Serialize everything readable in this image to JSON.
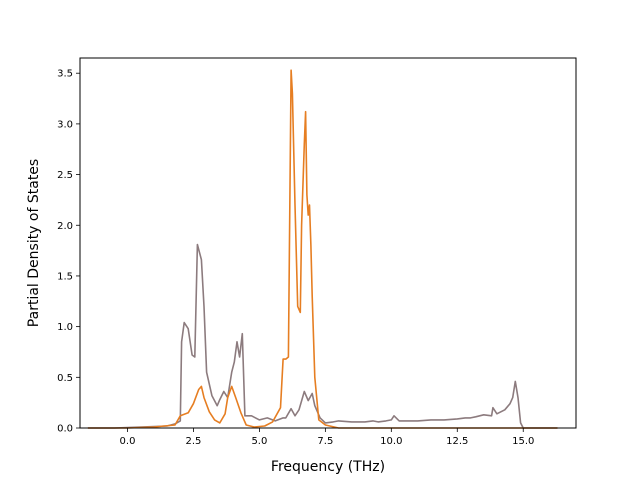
{
  "chart_data": {
    "type": "line",
    "title": "",
    "xlabel": "Frequency (THz)",
    "ylabel": "Partial Density of States",
    "xlim": [
      -1.8,
      17.0
    ],
    "ylim": [
      0,
      3.65
    ],
    "xticks": [
      0.0,
      2.5,
      5.0,
      7.5,
      10.0,
      12.5,
      15.0
    ],
    "xtick_labels": [
      "0.0",
      "2.5",
      "5.0",
      "7.5",
      "10.0",
      "12.5",
      "15.0"
    ],
    "yticks": [
      0.0,
      0.5,
      1.0,
      1.5,
      2.0,
      2.5,
      3.0,
      3.5
    ],
    "ytick_labels": [
      "0.0",
      "0.5",
      "1.0",
      "1.5",
      "2.0",
      "2.5",
      "3.0",
      "3.5"
    ],
    "grid": false,
    "legend": "none",
    "series": [
      {
        "color": "#8c7b7e",
        "x": [
          -1.5,
          -0.5,
          0.0,
          0.5,
          1.0,
          1.5,
          1.8,
          2.0,
          2.05,
          2.15,
          2.3,
          2.45,
          2.55,
          2.65,
          2.8,
          2.9,
          3.0,
          3.2,
          3.4,
          3.5,
          3.65,
          3.8,
          3.95,
          4.05,
          4.15,
          4.25,
          4.35,
          4.45,
          4.55,
          4.7,
          5.0,
          5.3,
          5.6,
          5.9,
          6.0,
          6.2,
          6.35,
          6.5,
          6.7,
          6.85,
          7.0,
          7.1,
          7.3,
          7.5,
          7.8,
          8.0,
          8.5,
          9.0,
          9.3,
          9.5,
          9.8,
          10.0,
          10.1,
          10.3,
          10.6,
          11.0,
          11.5,
          12.0,
          12.5,
          12.8,
          13.0,
          13.2,
          13.5,
          13.8,
          13.85,
          14.0,
          14.3,
          14.5,
          14.6,
          14.7,
          14.8,
          14.9,
          15.0,
          15.5,
          16.3
        ],
        "y": [
          0.0,
          0.0,
          0.005,
          0.01,
          0.015,
          0.02,
          0.04,
          0.07,
          0.85,
          1.04,
          0.98,
          0.72,
          0.7,
          1.81,
          1.66,
          1.2,
          0.55,
          0.32,
          0.22,
          0.28,
          0.36,
          0.3,
          0.55,
          0.65,
          0.85,
          0.7,
          0.93,
          0.12,
          0.12,
          0.12,
          0.08,
          0.1,
          0.07,
          0.1,
          0.1,
          0.19,
          0.12,
          0.18,
          0.36,
          0.27,
          0.34,
          0.22,
          0.1,
          0.05,
          0.06,
          0.07,
          0.06,
          0.06,
          0.07,
          0.06,
          0.07,
          0.08,
          0.12,
          0.07,
          0.07,
          0.07,
          0.08,
          0.08,
          0.09,
          0.1,
          0.1,
          0.11,
          0.13,
          0.12,
          0.2,
          0.14,
          0.18,
          0.24,
          0.3,
          0.46,
          0.3,
          0.05,
          0.0,
          0.0,
          0.0
        ]
      },
      {
        "color": "#e67e22",
        "x": [
          -1.5,
          0.0,
          1.0,
          1.8,
          2.0,
          2.3,
          2.5,
          2.7,
          2.8,
          2.9,
          3.1,
          3.3,
          3.5,
          3.7,
          3.8,
          3.95,
          4.1,
          4.3,
          4.5,
          4.8,
          5.2,
          5.5,
          5.8,
          5.9,
          6.0,
          6.1,
          6.2,
          6.25,
          6.35,
          6.45,
          6.55,
          6.6,
          6.7,
          6.75,
          6.8,
          6.85,
          6.9,
          6.95,
          7.0,
          7.1,
          7.25,
          7.5,
          8.0,
          10.0,
          15.0,
          16.3
        ],
        "y": [
          0.0,
          0.0,
          0.01,
          0.03,
          0.12,
          0.15,
          0.24,
          0.38,
          0.41,
          0.3,
          0.16,
          0.08,
          0.05,
          0.14,
          0.3,
          0.41,
          0.3,
          0.15,
          0.03,
          0.01,
          0.02,
          0.06,
          0.2,
          0.68,
          0.68,
          0.7,
          3.53,
          3.3,
          2.2,
          1.2,
          1.14,
          2.0,
          2.8,
          3.12,
          2.3,
          2.1,
          2.2,
          1.8,
          1.3,
          0.5,
          0.08,
          0.03,
          0.0,
          0.0,
          0.0,
          0.0
        ]
      }
    ]
  }
}
